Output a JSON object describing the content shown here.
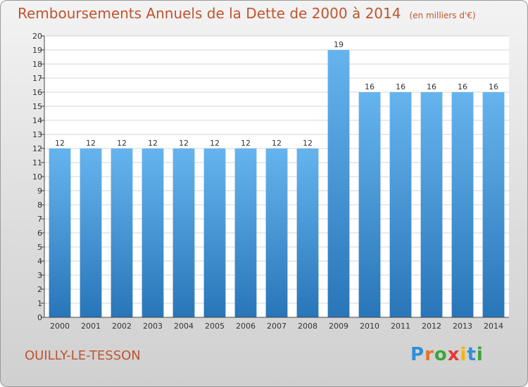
{
  "header": {
    "title": "Remboursements Annuels de la Dette de 2000 à 2014",
    "unit": "(en milliers d'€)"
  },
  "footer": {
    "place": "OUILLY-LE-TESSON",
    "logo": "Proxiti"
  },
  "colors": {
    "bar_light": "#66b4ee",
    "bar_dark": "#2876b8",
    "title": "#c0542e",
    "grid": "#d4d4d4"
  },
  "chart_data": {
    "type": "bar",
    "title": "Remboursements Annuels de la Dette de 2000 à 2014",
    "xlabel": "",
    "ylabel": "",
    "categories": [
      "2000",
      "2001",
      "2002",
      "2003",
      "2004",
      "2005",
      "2006",
      "2007",
      "2008",
      "2009",
      "2010",
      "2011",
      "2012",
      "2013",
      "2014"
    ],
    "values": [
      12,
      12,
      12,
      12,
      12,
      12,
      12,
      12,
      12,
      19,
      16,
      16,
      16,
      16,
      16
    ],
    "ylim": [
      0,
      20
    ],
    "yticks": [
      0,
      1,
      2,
      3,
      4,
      5,
      6,
      7,
      8,
      9,
      10,
      11,
      12,
      13,
      14,
      15,
      16,
      17,
      18,
      19,
      20
    ],
    "grid": true,
    "data_labels": true
  }
}
